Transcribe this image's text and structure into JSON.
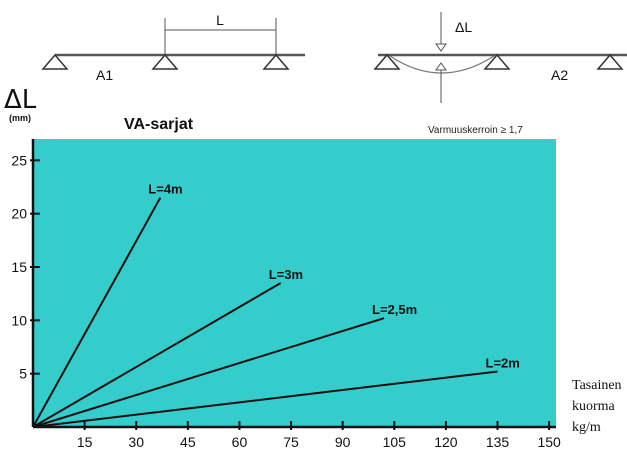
{
  "diagram": {
    "span_label": "L",
    "deflection_label": "ΔL",
    "beam_a1_label": "A1",
    "beam_a2_label": "A2"
  },
  "y_axis": {
    "symbol": "ΔL",
    "unit": "(mm)"
  },
  "header": {
    "series_title": "VA-sarjat",
    "safety_factor": "Varmuuskerroin ≥ 1,7"
  },
  "x_axis_note": {
    "line1": "Tasainen",
    "line2": "kuorma",
    "line3": "kg/m"
  },
  "colors": {
    "plot_background": "#35cccc",
    "line": "#111111",
    "beam": "#555555"
  },
  "chart_data": {
    "type": "line",
    "title": "VA-sarjat",
    "xlabel": "kg/m",
    "ylabel": "ΔL (mm)",
    "xlim": [
      0,
      152
    ],
    "ylim": [
      0,
      27
    ],
    "x_ticks": [
      15,
      30,
      45,
      60,
      75,
      90,
      105,
      120,
      135,
      150
    ],
    "y_ticks": [
      5,
      10,
      15,
      20,
      25
    ],
    "grid": false,
    "series": [
      {
        "name": "L=4m",
        "x": [
          0,
          37
        ],
        "y": [
          0,
          21.5
        ]
      },
      {
        "name": "L=3m",
        "x": [
          0,
          72
        ],
        "y": [
          0,
          13.5
        ]
      },
      {
        "name": "L=2,5m",
        "x": [
          0,
          102
        ],
        "y": [
          0,
          10.2
        ]
      },
      {
        "name": "L=2m",
        "x": [
          0,
          135
        ],
        "y": [
          0,
          5.2
        ]
      }
    ]
  }
}
